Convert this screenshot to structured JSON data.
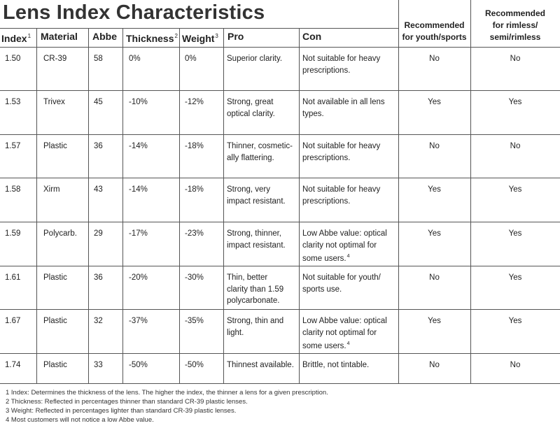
{
  "title": "Lens Index Characteristics",
  "headers": {
    "index": "Index",
    "index_sup": "1",
    "material": "Material",
    "abbe": "Abbe",
    "thickness": "Thickness",
    "thickness_sup": "2",
    "weight": "Weight",
    "weight_sup": "3",
    "pro": "Pro",
    "con": "Con",
    "youth_line1": "Recommended",
    "youth_line2": "for youth/sports",
    "rimless_line1": "Recommended",
    "rimless_line2": "for rimless/",
    "rimless_line3": "semi/rimless"
  },
  "rows": [
    {
      "index": "1.50",
      "material": "CR-39",
      "abbe": "58",
      "thickness": "0%",
      "weight": "0%",
      "pro": [
        "Superior clarity."
      ],
      "con": [
        "Not suitable for heavy",
        "prescriptions."
      ],
      "youth": "No",
      "rimless": "No"
    },
    {
      "index": "1.53",
      "material": "Trivex",
      "abbe": "45",
      "thickness": "-10%",
      "weight": "-12%",
      "pro": [
        "Strong, great",
        "optical clarity."
      ],
      "con": [
        "Not available in all lens",
        "types."
      ],
      "youth": "Yes",
      "rimless": "Yes"
    },
    {
      "index": "1.57",
      "material": "Plastic",
      "abbe": "36",
      "thickness": "-14%",
      "weight": "-18%",
      "pro": [
        "Thinner, cosmetic-",
        "ally flattering."
      ],
      "con": [
        "Not suitable for heavy",
        "prescriptions."
      ],
      "youth": "No",
      "rimless": "No"
    },
    {
      "index": "1.58",
      "material": "Xirm",
      "abbe": "43",
      "thickness": "-14%",
      "weight": "-18%",
      "pro": [
        "Strong, very",
        "impact resistant."
      ],
      "con": [
        "Not suitable for heavy",
        "prescriptions."
      ],
      "youth": "Yes",
      "rimless": "Yes"
    },
    {
      "index": "1.59",
      "material": "Polycarb.",
      "abbe": "29",
      "thickness": "-17%",
      "weight": "-23%",
      "pro": [
        "Strong, thinner,",
        "impact resistant."
      ],
      "con": [
        "Low Abbe value: optical",
        "clarity not optimal for",
        "some users."
      ],
      "con_sup": "4",
      "youth": "Yes",
      "rimless": "Yes"
    },
    {
      "index": "1.61",
      "material": "Plastic",
      "abbe": "36",
      "thickness": "-20%",
      "weight": "-30%",
      "pro": [
        "Thin, better",
        "clarity than 1.59",
        "polycarbonate."
      ],
      "con": [
        "Not suitable for youth/",
        "sports use."
      ],
      "youth": "No",
      "rimless": "Yes"
    },
    {
      "index": "1.67",
      "material": "Plastic",
      "abbe": "32",
      "thickness": "-37%",
      "weight": "-35%",
      "pro": [
        "Strong, thin and",
        "light."
      ],
      "con": [
        "Low Abbe value: optical",
        "clarity not optimal for",
        "some users."
      ],
      "con_sup": "4",
      "youth": "Yes",
      "rimless": "Yes"
    },
    {
      "index": "1.74",
      "material": "Plastic",
      "abbe": "33",
      "thickness": "-50%",
      "weight": "-50%",
      "pro": [
        "Thinnest available."
      ],
      "con": [
        "Brittle, not tintable."
      ],
      "youth": "No",
      "rimless": "No"
    }
  ],
  "footnotes": [
    "1 Index: Determines the thickness of the lens. The higher the index, the thinner a lens for a given prescription.",
    "2 Thickness: Reflected in percentages thinner than standard CR-39 plastic lenses.",
    "3 Weight: Reflected in percentages lighter than standard CR-39 plastic lenses.",
    "4 Most customers will not notice a low Abbe value."
  ]
}
